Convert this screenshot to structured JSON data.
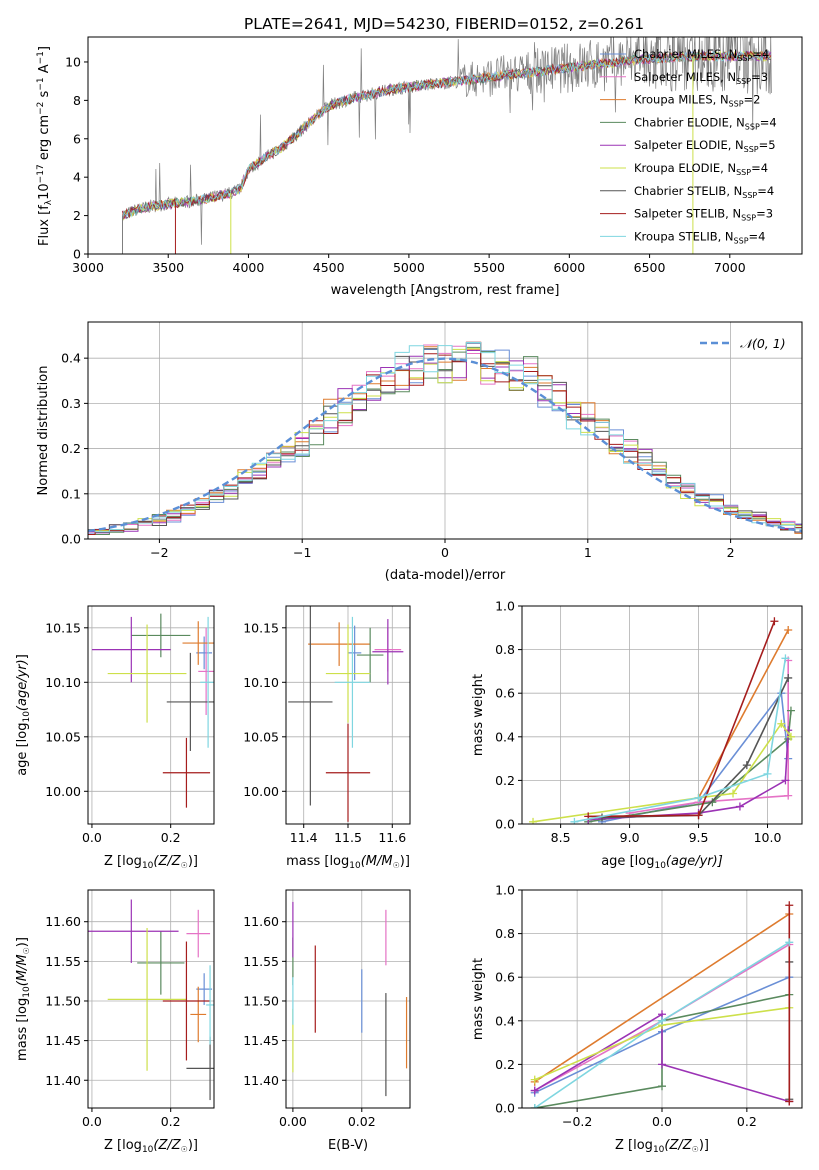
{
  "figure_title": "PLATE=2641, MJD=54230, FIBERID=0152, z=0.261",
  "colors": {
    "Chabrier MILES": "#6a8fd6",
    "Salpeter MILES": "#e573c6",
    "Kroupa MILES": "#de7b2e",
    "Chabrier ELODIE": "#5a8a5e",
    "Salpeter ELODIE": "#9b33b5",
    "Kroupa ELODIE": "#cde04a",
    "Chabrier STELIB": "#555555",
    "Salpeter STELIB": "#a51d1d",
    "Kroupa STELIB": "#7fd6e0",
    "normal": "#5b8fd6",
    "data": "#7f7f7f"
  },
  "chart_data": [
    {
      "type": "line",
      "xlabel": "wavelength [Angstrom, rest frame]",
      "ylabel": "Flux [f_λ 10^-17 erg cm^-2 s^-1 A^-1]",
      "xlim": [
        3000,
        7450
      ],
      "ylim": [
        0,
        11.3
      ],
      "xticks": [
        "3000",
        "3500",
        "4000",
        "4500",
        "5000",
        "5500",
        "6000",
        "6500",
        "7000"
      ],
      "yticks": [
        "0",
        "2",
        "4",
        "6",
        "8",
        "10"
      ],
      "legend_position": "upper right",
      "legend": [
        {
          "label": "Chabrier MILES, N_SSP=4",
          "base": "Chabrier MILES, N",
          "sub": "SSP",
          "tail": "=4"
        },
        {
          "label": "Salpeter MILES, N_SSP=3",
          "base": "Salpeter MILES, N",
          "sub": "SSP",
          "tail": "=3"
        },
        {
          "label": "Kroupa MILES, N_SSP=2",
          "base": "Kroupa MILES, N",
          "sub": "SSP",
          "tail": "=2"
        },
        {
          "label": "Chabrier ELODIE, N_SSP=4",
          "base": "Chabrier ELODIE, N",
          "sub": "SSP",
          "tail": "=4"
        },
        {
          "label": "Salpeter ELODIE, N_SSP=5",
          "base": "Salpeter ELODIE, N",
          "sub": "SSP",
          "tail": "=5"
        },
        {
          "label": "Kroupa ELODIE, N_SSP=4",
          "base": "Kroupa ELODIE, N",
          "sub": "SSP",
          "tail": "=4"
        },
        {
          "label": "Chabrier STELIB, N_SSP=4",
          "base": "Chabrier STELIB, N",
          "sub": "SSP",
          "tail": "=4"
        },
        {
          "label": "Salpeter STELIB, N_SSP=3",
          "base": "Salpeter STELIB, N",
          "sub": "SSP",
          "tail": "=3"
        },
        {
          "label": "Kroupa STELIB, N_SSP=4",
          "base": "Kroupa STELIB, N",
          "sub": "SSP",
          "tail": "=4"
        }
      ],
      "continuum": [
        [
          3215,
          2.0
        ],
        [
          3300,
          2.3
        ],
        [
          3400,
          2.5
        ],
        [
          3500,
          2.6
        ],
        [
          3600,
          2.7
        ],
        [
          3700,
          2.8
        ],
        [
          3800,
          3.0
        ],
        [
          3900,
          3.2
        ],
        [
          3950,
          3.4
        ],
        [
          4000,
          4.4
        ],
        [
          4100,
          5.0
        ],
        [
          4200,
          5.5
        ],
        [
          4300,
          6.2
        ],
        [
          4400,
          7.0
        ],
        [
          4500,
          7.7
        ],
        [
          4600,
          8.0
        ],
        [
          4700,
          8.2
        ],
        [
          4800,
          8.4
        ],
        [
          4900,
          8.6
        ],
        [
          5000,
          8.7
        ],
        [
          5100,
          8.8
        ],
        [
          5200,
          8.9
        ],
        [
          5300,
          9.0
        ],
        [
          5400,
          9.1
        ],
        [
          5500,
          9.2
        ],
        [
          5600,
          9.3
        ],
        [
          5700,
          9.4
        ],
        [
          5800,
          9.5
        ],
        [
          5900,
          9.6
        ],
        [
          6000,
          9.7
        ],
        [
          6200,
          9.9
        ],
        [
          6400,
          10.1
        ],
        [
          6600,
          10.2
        ],
        [
          6800,
          10.3
        ],
        [
          7000,
          10.3
        ],
        [
          7200,
          10.3
        ],
        [
          7260,
          10.3
        ]
      ]
    },
    {
      "type": "line",
      "xlabel": "(data-model)/error",
      "ylabel": "Normed distribution",
      "xlim": [
        -2.5,
        2.5
      ],
      "ylim": [
        0,
        0.48
      ],
      "xticks": [
        "−2",
        "−1",
        "0",
        "1",
        "2"
      ],
      "yticks": [
        "0.0",
        "0.1",
        "0.2",
        "0.3",
        "0.4"
      ],
      "legend_position": "upper right",
      "series_name": "𝒩(0, 1)",
      "bin_width": 0.1
    },
    {
      "type": "scatter",
      "xlabel_base": "Z [log",
      "xlabel_sub": "10",
      "xlabel_tail": "(Z/Z",
      "xlabel_end": ")]",
      "ylabel": "age  [log10(age/yr)]",
      "xlim": [
        -0.01,
        0.31
      ],
      "ylim": [
        9.97,
        10.17
      ],
      "xticks": [
        "0.0",
        "0.2"
      ],
      "yticks": [
        "10.00",
        "10.05",
        "10.10",
        "10.15"
      ],
      "points": [
        {
          "series": "Chabrier MILES",
          "x": 0.285,
          "xerr": 0.02,
          "y": 10.127,
          "yerr": 0.015
        },
        {
          "series": "Salpeter MILES",
          "x": 0.29,
          "xerr": 0.02,
          "y": 10.11,
          "yerr": 0.04
        },
        {
          "series": "Kroupa MILES",
          "x": 0.27,
          "xerr": 0.04,
          "y": 10.136,
          "yerr": 0.02
        },
        {
          "series": "Chabrier ELODIE",
          "x": 0.175,
          "xerr": 0.075,
          "y": 10.143,
          "yerr": 0.02
        },
        {
          "series": "Salpeter ELODIE",
          "x": 0.1,
          "xerr": 0.1,
          "y": 10.13,
          "yerr": 0.03
        },
        {
          "series": "Kroupa ELODIE",
          "x": 0.14,
          "xerr": 0.1,
          "y": 10.108,
          "yerr": 0.045
        },
        {
          "series": "Chabrier STELIB",
          "x": 0.25,
          "xerr": 0.06,
          "y": 10.082,
          "yerr": 0.045
        },
        {
          "series": "Salpeter STELIB",
          "x": 0.24,
          "xerr": 0.06,
          "y": 10.017,
          "yerr": 0.032
        },
        {
          "series": "Kroupa STELIB",
          "x": 0.295,
          "xerr": 0.02,
          "y": 10.1,
          "yerr": 0.06
        }
      ]
    },
    {
      "type": "scatter",
      "xlabel_base": "mass [log",
      "xlabel_sub": "10",
      "xlabel_tail": "(M/M",
      "xlabel_end": ")]",
      "xlim": [
        11.36,
        11.64
      ],
      "ylim": [
        9.97,
        10.17
      ],
      "xticks": [
        "11.4",
        "11.5",
        "11.6"
      ],
      "yticks": [
        "10.00",
        "10.05",
        "10.10",
        "10.15"
      ],
      "points": [
        {
          "series": "Chabrier MILES",
          "x": 11.515,
          "xerr": 0.015,
          "y": 10.127,
          "yerr": 0.025
        },
        {
          "series": "Salpeter MILES",
          "x": 11.59,
          "xerr": 0.03,
          "y": 10.13,
          "yerr": 0.02
        },
        {
          "series": "Kroupa MILES",
          "x": 11.48,
          "xerr": 0.07,
          "y": 10.135,
          "yerr": 0.02
        },
        {
          "series": "Chabrier ELODIE",
          "x": 11.55,
          "xerr": 0.03,
          "y": 10.125,
          "yerr": 0.025
        },
        {
          "series": "Salpeter ELODIE",
          "x": 11.59,
          "xerr": 0.035,
          "y": 10.128,
          "yerr": 0.03
        },
        {
          "series": "Kroupa ELODIE",
          "x": 11.5,
          "xerr": 0.05,
          "y": 10.108,
          "yerr": 0.045
        },
        {
          "series": "Chabrier STELIB",
          "x": 11.415,
          "xerr": 0.05,
          "y": 10.082,
          "yerr": 0.095
        },
        {
          "series": "Salpeter STELIB",
          "x": 11.5,
          "xerr": 0.05,
          "y": 10.017,
          "yerr": 0.045
        },
        {
          "series": "Kroupa STELIB",
          "x": 11.51,
          "xerr": 0.04,
          "y": 10.1,
          "yerr": 0.06
        }
      ]
    },
    {
      "type": "line",
      "xlabel_base": "age  [log",
      "xlabel_sub": "10",
      "xlabel_tail": "(age/yr)]",
      "ylabel": "mass weight",
      "xlim": [
        8.22,
        10.25
      ],
      "ylim": [
        0,
        1.0
      ],
      "xticks": [
        "8.5",
        "9.0",
        "9.5",
        "10.0"
      ],
      "yticks": [
        "0.0",
        "0.2",
        "0.4",
        "0.6",
        "0.8",
        "1.0"
      ],
      "series": [
        {
          "name": "Chabrier MILES",
          "points": [
            [
              8.8,
              0.01
            ],
            [
              9.5,
              0.1
            ],
            [
              10.1,
              0.6
            ],
            [
              10.15,
              0.3
            ]
          ]
        },
        {
          "name": "Salpeter MILES",
          "points": [
            [
              9.0,
              0.05
            ],
            [
              9.5,
              0.1
            ],
            [
              10.15,
              0.13
            ],
            [
              10.15,
              0.75
            ]
          ]
        },
        {
          "name": "Kroupa MILES",
          "points": [
            [
              9.5,
              0.12
            ],
            [
              10.15,
              0.89
            ]
          ]
        },
        {
          "name": "Chabrier ELODIE",
          "points": [
            [
              8.7,
              0.01
            ],
            [
              9.6,
              0.1
            ],
            [
              10.15,
              0.39
            ],
            [
              10.17,
              0.52
            ]
          ]
        },
        {
          "name": "Salpeter ELODIE",
          "points": [
            [
              8.7,
              0.02
            ],
            [
              9.5,
              0.05
            ],
            [
              9.8,
              0.08
            ],
            [
              10.13,
              0.2
            ],
            [
              10.15,
              0.43
            ]
          ]
        },
        {
          "name": "Kroupa ELODIE",
          "points": [
            [
              8.3,
              0.01
            ],
            [
              9.5,
              0.12
            ],
            [
              9.75,
              0.14
            ],
            [
              10.1,
              0.46
            ],
            [
              10.17,
              0.4
            ]
          ]
        },
        {
          "name": "Chabrier STELIB",
          "points": [
            [
              8.8,
              0.03
            ],
            [
              9.5,
              0.04
            ],
            [
              9.85,
              0.27
            ],
            [
              10.15,
              0.67
            ]
          ]
        },
        {
          "name": "Salpeter STELIB",
          "points": [
            [
              8.7,
              0.035
            ],
            [
              9.5,
              0.04
            ],
            [
              10.05,
              0.93
            ]
          ]
        },
        {
          "name": "Kroupa STELIB",
          "points": [
            [
              8.6,
              0.01
            ],
            [
              9.5,
              0.12
            ],
            [
              10.0,
              0.23
            ],
            [
              10.13,
              0.76
            ]
          ]
        }
      ]
    },
    {
      "type": "scatter",
      "xlabel_base": "Z [log",
      "xlabel_sub": "10",
      "xlabel_tail": "(Z/Z",
      "xlabel_end": ")]",
      "ylabel": "mass [log10(M/M☉)]",
      "xlim": [
        -0.01,
        0.31
      ],
      "ylim": [
        11.365,
        11.64
      ],
      "xticks": [
        "0.0",
        "0.2"
      ],
      "yticks": [
        "11.40",
        "11.45",
        "11.50",
        "11.55",
        "11.60"
      ],
      "points": [
        {
          "series": "Chabrier MILES",
          "x": 0.285,
          "xerr": 0.02,
          "y": 11.515,
          "yerr": 0.02
        },
        {
          "series": "Salpeter MILES",
          "x": 0.27,
          "xerr": 0.03,
          "y": 11.585,
          "yerr": 0.03
        },
        {
          "series": "Kroupa MILES",
          "x": 0.27,
          "xerr": 0.02,
          "y": 11.483,
          "yerr": 0.035
        },
        {
          "series": "Chabrier ELODIE",
          "x": 0.175,
          "xerr": 0.06,
          "y": 11.548,
          "yerr": 0.04
        },
        {
          "series": "Salpeter ELODIE",
          "x": 0.1,
          "xerr": 0.12,
          "y": 11.588,
          "yerr": 0.04
        },
        {
          "series": "Kroupa ELODIE",
          "x": 0.14,
          "xerr": 0.1,
          "y": 11.502,
          "yerr": 0.09
        },
        {
          "series": "Chabrier STELIB",
          "x": 0.3,
          "xerr": 0.06,
          "y": 11.415,
          "yerr": 0.04
        },
        {
          "series": "Salpeter STELIB",
          "x": 0.24,
          "xerr": 0.06,
          "y": 11.5,
          "yerr": 0.075
        },
        {
          "series": "Kroupa STELIB",
          "x": 0.3,
          "xerr": 0.01,
          "y": 11.495,
          "yerr": 0.05
        }
      ]
    },
    {
      "type": "scatter",
      "xlabel": "E(B-V)",
      "xlim": [
        -0.002,
        0.034
      ],
      "ylim": [
        11.365,
        11.64
      ],
      "xticks": [
        "0.00",
        "0.02"
      ],
      "yticks": [
        "11.40",
        "11.45",
        "11.50",
        "11.55",
        "11.60"
      ],
      "points": [
        {
          "series": "Chabrier MILES",
          "x": 0.02,
          "y": 11.5,
          "yerr": 0.04
        },
        {
          "series": "Salpeter MILES",
          "x": 0.027,
          "y": 11.58,
          "yerr": 0.035
        },
        {
          "series": "Kroupa MILES",
          "x": 0.033,
          "y": 11.46,
          "yerr": 0.045
        },
        {
          "series": "Chabrier ELODIE",
          "x": 0.0,
          "y": 11.55,
          "yerr": 0.03
        },
        {
          "series": "Salpeter ELODIE",
          "x": 0.0,
          "y": 11.59,
          "yerr": 0.035
        },
        {
          "series": "Kroupa ELODIE",
          "x": 0.0,
          "y": 11.45,
          "yerr": 0.04
        },
        {
          "series": "Chabrier STELIB",
          "x": 0.027,
          "y": 11.445,
          "yerr": 0.065
        },
        {
          "series": "Salpeter STELIB",
          "x": 0.0065,
          "y": 11.515,
          "yerr": 0.055
        },
        {
          "series": "Kroupa STELIB",
          "x": 0.0,
          "y": 11.5,
          "yerr": 0.03
        }
      ]
    },
    {
      "type": "line",
      "xlabel_base": "Z [log",
      "xlabel_sub": "10",
      "xlabel_tail": "(Z/Z",
      "xlabel_end": ")]",
      "ylabel": "mass weight",
      "xlim": [
        -0.33,
        0.33
      ],
      "ylim": [
        0,
        1.0
      ],
      "xticks": [
        "−0.2",
        "0.0",
        "0.2"
      ],
      "yticks": [
        "0.0",
        "0.2",
        "0.4",
        "0.6",
        "0.8",
        "1.0"
      ],
      "series": [
        {
          "name": "Chabrier MILES",
          "points": [
            [
              -0.3,
              0.07
            ],
            [
              0.0,
              0.35
            ],
            [
              0.3,
              0.6
            ]
          ]
        },
        {
          "name": "Salpeter MILES",
          "points": [
            [
              -0.3,
              0.08
            ],
            [
              0.0,
              0.4
            ],
            [
              0.3,
              0.75
            ]
          ]
        },
        {
          "name": "Kroupa MILES",
          "points": [
            [
              -0.3,
              0.12
            ],
            [
              0.3,
              0.89
            ]
          ]
        },
        {
          "name": "Chabrier ELODIE",
          "points": [
            [
              -0.3,
              0.0
            ],
            [
              0.0,
              0.1
            ],
            [
              0.0,
              0.4
            ],
            [
              0.3,
              0.52
            ]
          ]
        },
        {
          "name": "Salpeter ELODIE",
          "points": [
            [
              -0.3,
              0.08
            ],
            [
              0.0,
              0.43
            ],
            [
              0.0,
              0.2
            ],
            [
              0.3,
              0.03
            ]
          ]
        },
        {
          "name": "Kroupa ELODIE",
          "points": [
            [
              -0.3,
              0.13
            ],
            [
              0.0,
              0.38
            ],
            [
              0.3,
              0.46
            ]
          ]
        },
        {
          "name": "Chabrier STELIB",
          "points": [
            [
              0.3,
              0.04
            ],
            [
              0.3,
              0.67
            ]
          ]
        },
        {
          "name": "Salpeter STELIB",
          "points": [
            [
              0.3,
              0.03
            ],
            [
              0.3,
              0.93
            ]
          ]
        },
        {
          "name": "Kroupa STELIB",
          "points": [
            [
              -0.3,
              0.0
            ],
            [
              0.0,
              0.4
            ],
            [
              0.3,
              0.76
            ]
          ]
        }
      ]
    }
  ]
}
